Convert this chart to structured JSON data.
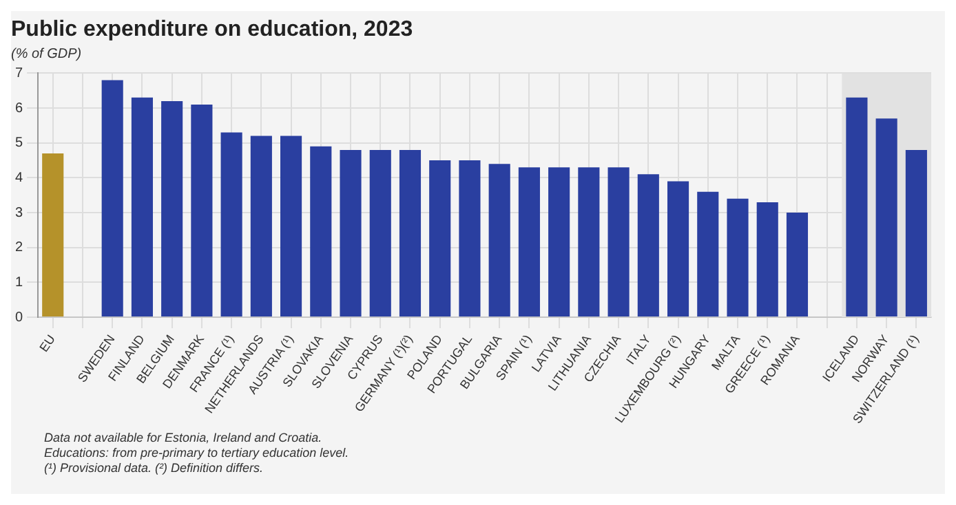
{
  "chart_data": {
    "type": "bar",
    "title": "Public expenditure on education, 2023",
    "subtitle": "(% of GDP)",
    "categories": [
      "EU",
      null,
      "SWEDEN",
      "FINLAND",
      "BELGIUM",
      "DENMARK",
      "FRANCE (¹)",
      "NETHERLANDS",
      "AUSTRIA (¹)",
      "SLOVAKIA",
      "SLOVENIA",
      "CYPRUS",
      "GERMANY (¹)(²)",
      "POLAND",
      "PORTUGAL",
      "BULGARIA",
      "SPAIN (¹)",
      "LATVIA",
      "LITHUANIA",
      "CZECHIA",
      "ITALY",
      "LUXEMBOURG (²)",
      "HUNGARY",
      "MALTA",
      "GREECE (¹)",
      "ROMANIA",
      null,
      "ICELAND",
      "NORWAY",
      "SWITZERLAND (¹)"
    ],
    "values": [
      4.7,
      null,
      6.8,
      6.3,
      6.2,
      6.1,
      5.3,
      5.2,
      5.2,
      4.9,
      4.8,
      4.8,
      4.8,
      4.5,
      4.5,
      4.4,
      4.3,
      4.3,
      4.3,
      4.3,
      4.1,
      3.9,
      3.6,
      3.4,
      3.3,
      3.0,
      null,
      6.3,
      5.7,
      4.8
    ],
    "colors": [
      "#b5922a",
      null,
      "#2a3fa0",
      "#2a3fa0",
      "#2a3fa0",
      "#2a3fa0",
      "#2a3fa0",
      "#2a3fa0",
      "#2a3fa0",
      "#2a3fa0",
      "#2a3fa0",
      "#2a3fa0",
      "#2a3fa0",
      "#2a3fa0",
      "#2a3fa0",
      "#2a3fa0",
      "#2a3fa0",
      "#2a3fa0",
      "#2a3fa0",
      "#2a3fa0",
      "#2a3fa0",
      "#2a3fa0",
      "#2a3fa0",
      "#2a3fa0",
      "#2a3fa0",
      "#2a3fa0",
      null,
      "#2a3fa0",
      "#2a3fa0",
      "#2a3fa0"
    ],
    "ylim": [
      0,
      7
    ],
    "yticks": [
      0,
      1,
      2,
      3,
      4,
      5,
      6,
      7
    ],
    "grid": true,
    "legend": false,
    "bands": [
      {
        "axis": "x",
        "from": "ICELAND",
        "to": "SWITZERLAND (¹)",
        "color": "#e2e2e2"
      }
    ],
    "annotations": [
      "Data not available for Estonia, Ireland and Croatia.",
      "Educations: from pre-primary to tertiary education level.",
      "(¹) Provisional data. (²) Definition differs."
    ]
  }
}
